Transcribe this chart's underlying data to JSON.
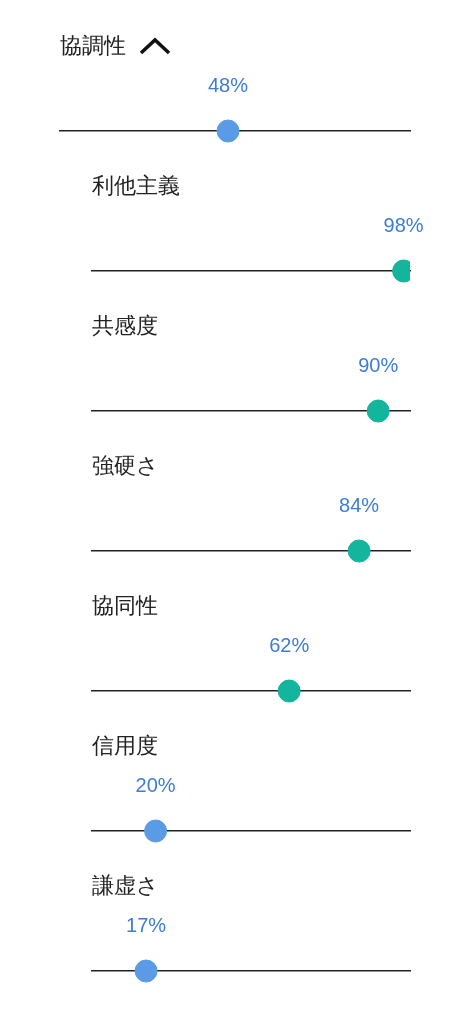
{
  "chart_data": [
    {
      "type": "other",
      "title": "協調性",
      "values": [
        48
      ],
      "value_labels": [
        "48%"
      ],
      "color": "#5b9be6"
    },
    {
      "type": "other",
      "title": "利他主義",
      "values": [
        98
      ],
      "value_labels": [
        "98%"
      ],
      "color": "#13b59c"
    },
    {
      "type": "other",
      "title": "共感度",
      "values": [
        90
      ],
      "value_labels": [
        "90%"
      ],
      "color": "#13b59c"
    },
    {
      "type": "other",
      "title": "強硬さ",
      "values": [
        84
      ],
      "value_labels": [
        "84%"
      ],
      "color": "#13b59c"
    },
    {
      "type": "other",
      "title": "協同性",
      "values": [
        62
      ],
      "value_labels": [
        "62%"
      ],
      "color": "#13b59c"
    },
    {
      "type": "other",
      "title": "信用度",
      "values": [
        20
      ],
      "value_labels": [
        "20%"
      ],
      "color": "#5b9be6"
    },
    {
      "type": "other",
      "title": "謙虚さ",
      "values": [
        17
      ],
      "value_labels": [
        "17%"
      ],
      "color": "#5b9be6"
    }
  ]
}
